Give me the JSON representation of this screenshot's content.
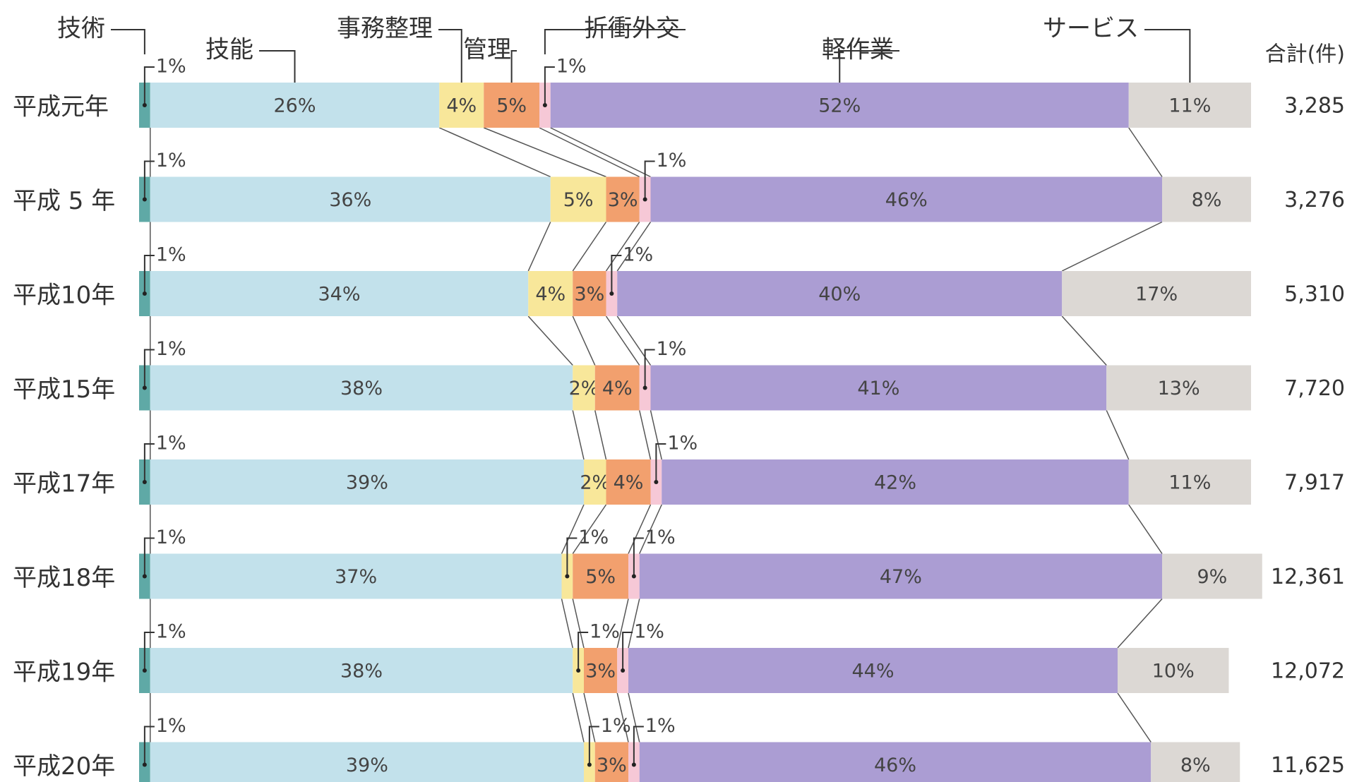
{
  "chart_data": {
    "type": "stacked_bar_horizontal",
    "categories": [
      "平成元年",
      "平成 5 年",
      "平成10年",
      "平成15年",
      "平成17年",
      "平成18年",
      "平成19年",
      "平成20年"
    ],
    "xlim": [
      0,
      100
    ],
    "series": [
      {
        "name": "技術",
        "color": "#5fa9a6",
        "values": [
          1,
          1,
          1,
          1,
          1,
          1,
          1,
          1
        ],
        "value_labels": [
          "1%",
          "1%",
          "1%",
          "1%",
          "1%",
          "1%",
          "1%",
          "1%"
        ]
      },
      {
        "name": "技能",
        "color": "#c2e1eb",
        "values": [
          26,
          36,
          34,
          38,
          39,
          37,
          38,
          39
        ],
        "value_labels": [
          "26%",
          "36%",
          "34%",
          "38%",
          "39%",
          "37%",
          "38%",
          "39%"
        ]
      },
      {
        "name": "事務整理",
        "color": "#f8e79a",
        "values": [
          4,
          5,
          4,
          2,
          2,
          1,
          1,
          1
        ],
        "value_labels": [
          "4%",
          "5%",
          "4%",
          "2%",
          "2%",
          "1%",
          "1%",
          "1%"
        ]
      },
      {
        "name": "管理",
        "color": "#f2a06e",
        "values": [
          5,
          3,
          3,
          4,
          4,
          5,
          3,
          3
        ],
        "value_labels": [
          "5%",
          "3%",
          "3%",
          "4%",
          "4%",
          "5%",
          "3%",
          "3%"
        ]
      },
      {
        "name": "折衝外交",
        "color": "#f6c8d6",
        "values": [
          1,
          1,
          1,
          1,
          1,
          1,
          1,
          1
        ],
        "value_labels": [
          "1%",
          "1%",
          "1%",
          "1%",
          "1%",
          "1%",
          "1%",
          "1%"
        ]
      },
      {
        "name": "軽作業",
        "color": "#ab9dd3",
        "values": [
          52,
          46,
          40,
          41,
          42,
          47,
          44,
          46
        ],
        "value_labels": [
          "52%",
          "46%",
          "40%",
          "41%",
          "42%",
          "47%",
          "44%",
          "46%"
        ]
      },
      {
        "name": "サービス",
        "color": "#dcd8d4",
        "values": [
          11,
          8,
          17,
          13,
          11,
          9,
          10,
          8
        ],
        "value_labels": [
          "11%",
          "8%",
          "17%",
          "13%",
          "11%",
          "9%",
          "10%",
          "8%"
        ]
      }
    ],
    "totals": {
      "name": "合計(件)",
      "values": [
        3285,
        3276,
        5310,
        7720,
        7917,
        12361,
        12072,
        11625
      ],
      "value_labels": [
        "3,285",
        "3,276",
        "5,310",
        "7,720",
        "7,917",
        "12,361",
        "12,072",
        "11,625"
      ]
    }
  }
}
